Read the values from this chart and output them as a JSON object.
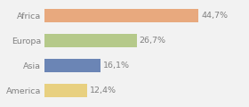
{
  "categories": [
    "Africa",
    "Europa",
    "Asia",
    "America"
  ],
  "values": [
    44.7,
    26.7,
    16.1,
    12.4
  ],
  "labels": [
    "44,7%",
    "26,7%",
    "16,1%",
    "12,4%"
  ],
  "bar_colors": [
    "#e8a97e",
    "#b5c98a",
    "#6b85b5",
    "#e8d080"
  ],
  "background_color": "#f2f2f2",
  "xlim": [
    0,
    58
  ],
  "label_fontsize": 6.8,
  "tick_fontsize": 6.8,
  "label_color": "#808080",
  "tick_color": "#808080",
  "bar_height": 0.55
}
